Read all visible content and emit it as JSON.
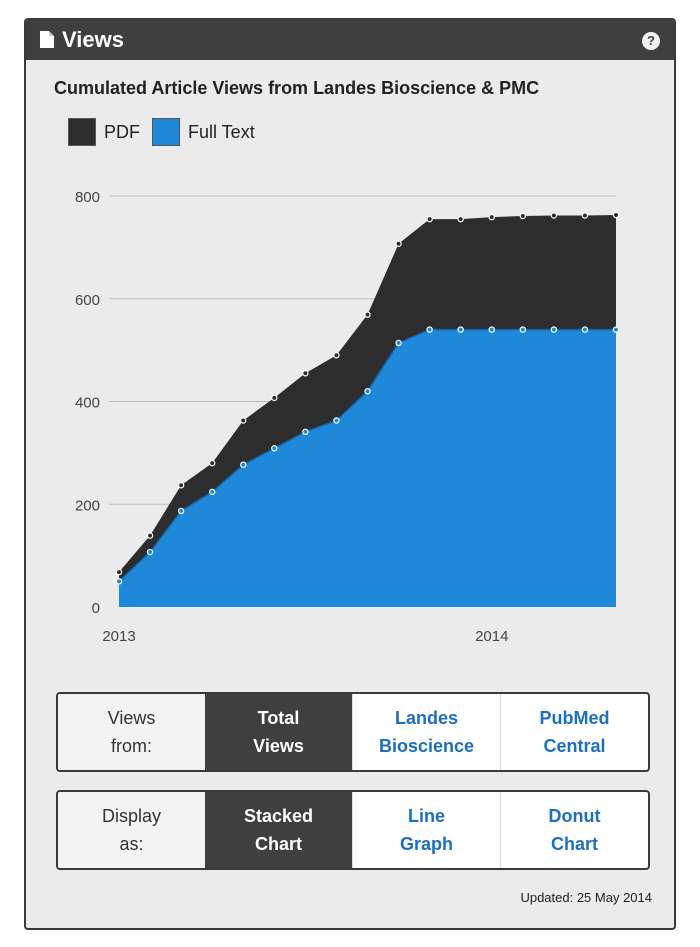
{
  "widget": {
    "title": "Views",
    "help_symbol": "?",
    "chart_title": "Cumulated Article Views from Landes Bioscience & PMC",
    "legend": [
      {
        "label": "PDF",
        "color": "#2d2d2d"
      },
      {
        "label": "Full Text",
        "color": "#1f88d8"
      }
    ],
    "views_from": {
      "label_line1": "Views",
      "label_line2": "from:",
      "options": [
        {
          "line1": "Total",
          "line2": "Views",
          "active": true
        },
        {
          "line1": "Landes",
          "line2": "Bioscience",
          "active": false
        },
        {
          "line1": "PubMed",
          "line2": "Central",
          "active": false
        }
      ]
    },
    "display_as": {
      "label_line1": "Display",
      "label_line2": "as:",
      "options": [
        {
          "line1": "Stacked",
          "line2": "Chart",
          "active": true
        },
        {
          "line1": "Line",
          "line2": "Graph",
          "active": false
        },
        {
          "line1": "Donut",
          "line2": "Chart",
          "active": false
        }
      ]
    },
    "updated": "Updated: 25 May 2014"
  },
  "chart_data": {
    "type": "area",
    "stacked": true,
    "title": "Cumulated Article Views from Landes Bioscience & PMC",
    "xlabel": "",
    "ylabel": "",
    "ylim": [
      0,
      800
    ],
    "yticks": [
      0,
      200,
      400,
      600,
      800
    ],
    "xticks": [
      "2013",
      "2014"
    ],
    "grid": true,
    "legend_position": "top-left",
    "x": [
      "2013-01",
      "2013-02",
      "2013-03",
      "2013-04",
      "2013-05",
      "2013-06",
      "2013-07",
      "2013-08",
      "2013-09",
      "2013-10",
      "2013-11",
      "2013-12",
      "2014-01",
      "2014-02",
      "2014-03",
      "2014-04",
      "2014-05"
    ],
    "series": [
      {
        "name": "Full Text",
        "color": "#1f88d8",
        "values": [
          50,
          107,
          187,
          224,
          277,
          309,
          341,
          363,
          420,
          514,
          540,
          540,
          540,
          540,
          540,
          540,
          540
        ]
      },
      {
        "name": "PDF",
        "color": "#2d2d2d",
        "values": [
          18,
          32,
          50,
          56,
          86,
          98,
          114,
          127,
          149,
          193,
          215,
          215,
          219,
          221,
          222,
          222,
          223
        ]
      }
    ]
  }
}
